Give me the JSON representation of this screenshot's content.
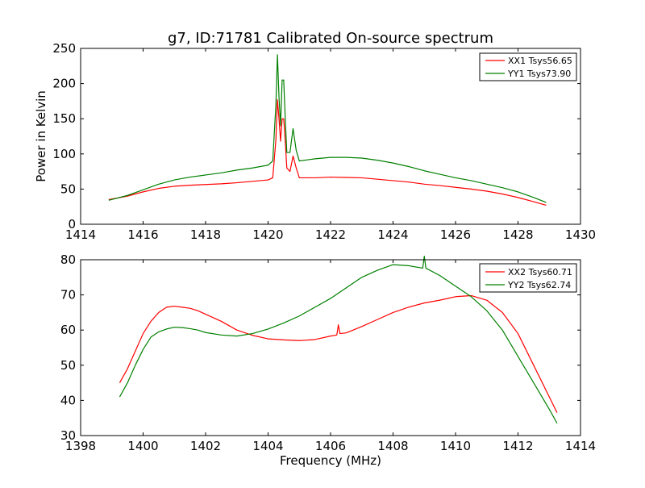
{
  "chart_data": [
    {
      "type": "line",
      "title": "g7, ID:71781 Calibrated On-source spectrum",
      "xlabel": "",
      "ylabel": "Power in Kelvin",
      "xlim": [
        1414,
        1430
      ],
      "ylim": [
        0,
        250
      ],
      "xticks": [
        1414,
        1416,
        1418,
        1420,
        1422,
        1424,
        1426,
        1428,
        1430
      ],
      "yticks": [
        0,
        50,
        100,
        150,
        200,
        250
      ],
      "grid": false,
      "legend_position": "top-right",
      "series": [
        {
          "name": "XX1 Tsys56.65",
          "color": "#ff0000",
          "x": [
            1414.9,
            1415.5,
            1416.0,
            1416.5,
            1417.0,
            1417.5,
            1418.0,
            1418.5,
            1419.0,
            1419.5,
            1420.0,
            1420.15,
            1420.25,
            1420.3,
            1420.35,
            1420.4,
            1420.45,
            1420.5,
            1420.55,
            1420.6,
            1420.7,
            1420.8,
            1420.9,
            1421.0,
            1421.5,
            1422.0,
            1422.5,
            1423.0,
            1423.5,
            1424.0,
            1424.5,
            1425.0,
            1425.5,
            1426.0,
            1426.5,
            1427.0,
            1427.5,
            1428.0,
            1428.5,
            1428.9
          ],
          "values": [
            35,
            40,
            46,
            51,
            54,
            55.5,
            56.5,
            57.5,
            59,
            61,
            63,
            66,
            120,
            177,
            150,
            118,
            150,
            150,
            118,
            80,
            75,
            97,
            80,
            66,
            66,
            67,
            66.5,
            66,
            64,
            62,
            60,
            57,
            55,
            52.5,
            50,
            47,
            43,
            38,
            32,
            27
          ]
        },
        {
          "name": "YY1 Tsys73.90",
          "color": "#008000",
          "x": [
            1414.9,
            1415.5,
            1416.0,
            1416.5,
            1417.0,
            1417.5,
            1418.0,
            1418.5,
            1419.0,
            1419.5,
            1420.0,
            1420.15,
            1420.25,
            1420.3,
            1420.35,
            1420.4,
            1420.45,
            1420.5,
            1420.55,
            1420.6,
            1420.7,
            1420.8,
            1420.9,
            1421.0,
            1421.5,
            1422.0,
            1422.5,
            1423.0,
            1423.5,
            1424.0,
            1424.5,
            1425.0,
            1425.5,
            1426.0,
            1426.5,
            1427.0,
            1427.5,
            1428.0,
            1428.5,
            1428.9
          ],
          "values": [
            34,
            41,
            49,
            57,
            63,
            67,
            70,
            73,
            77,
            80,
            84,
            90,
            170,
            241,
            180,
            140,
            205,
            205,
            150,
            102,
            102,
            136,
            105,
            90,
            93,
            95,
            95,
            94,
            91,
            87,
            82,
            76,
            71,
            66,
            62,
            57,
            52,
            46,
            38,
            31
          ]
        }
      ]
    },
    {
      "type": "line",
      "title": "",
      "xlabel": "Frequency (MHz)",
      "ylabel": "",
      "xlim": [
        1398,
        1414
      ],
      "ylim": [
        30,
        80
      ],
      "xticks": [
        1398,
        1400,
        1402,
        1404,
        1406,
        1408,
        1410,
        1412,
        1414
      ],
      "yticks": [
        30,
        40,
        50,
        60,
        70,
        80
      ],
      "grid": false,
      "legend_position": "top-right",
      "series": [
        {
          "name": "XX2 Tsys60.71",
          "color": "#ff0000",
          "x": [
            1399.25,
            1399.5,
            1399.75,
            1400.0,
            1400.25,
            1400.5,
            1400.75,
            1401.0,
            1401.25,
            1401.5,
            1401.75,
            1402.0,
            1402.5,
            1403.0,
            1403.5,
            1404.0,
            1404.5,
            1405.0,
            1405.5,
            1406.0,
            1406.2,
            1406.25,
            1406.3,
            1406.5,
            1407.0,
            1407.5,
            1408.0,
            1408.5,
            1409.0,
            1409.5,
            1410.0,
            1410.5,
            1411.0,
            1411.5,
            1412.0,
            1412.5,
            1413.0,
            1413.25
          ],
          "values": [
            45,
            49,
            54,
            59,
            62.5,
            65,
            66.5,
            66.8,
            66.5,
            66.2,
            65.5,
            64.5,
            62.5,
            60,
            58.5,
            57.5,
            57.2,
            57.0,
            57.3,
            58.3,
            58.6,
            61.5,
            59,
            59.2,
            61,
            63,
            65,
            66.5,
            67.7,
            68.5,
            69.5,
            69.8,
            68.5,
            65,
            59,
            50,
            41,
            36.5
          ]
        },
        {
          "name": "YY2 Tsys62.74",
          "color": "#008000",
          "x": [
            1399.25,
            1399.5,
            1399.75,
            1400.0,
            1400.25,
            1400.5,
            1400.75,
            1401.0,
            1401.25,
            1401.5,
            1401.75,
            1402.0,
            1402.5,
            1403.0,
            1403.5,
            1404.0,
            1404.5,
            1405.0,
            1405.5,
            1406.0,
            1406.5,
            1407.0,
            1407.5,
            1408.0,
            1408.5,
            1408.95,
            1409.0,
            1409.05,
            1409.5,
            1410.0,
            1410.5,
            1411.0,
            1411.5,
            1412.0,
            1412.5,
            1413.0,
            1413.25
          ],
          "values": [
            41,
            45,
            50,
            54.5,
            58,
            59.5,
            60.3,
            60.8,
            60.7,
            60.4,
            60.0,
            59.3,
            58.6,
            58.3,
            59.0,
            60.3,
            62.0,
            64.0,
            66.5,
            69.0,
            72.0,
            75.0,
            77.0,
            78.6,
            78.3,
            77.6,
            81,
            77.6,
            75.5,
            72.5,
            69.5,
            65.5,
            60.0,
            52.5,
            45.0,
            37.5,
            33.5
          ]
        }
      ]
    }
  ]
}
